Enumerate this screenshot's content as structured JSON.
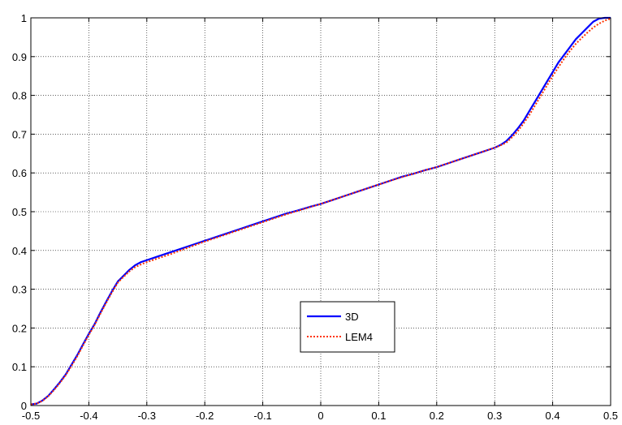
{
  "chart_data": {
    "type": "line",
    "title": "",
    "xlabel": "",
    "ylabel": "",
    "xlim": [
      -0.5,
      0.5
    ],
    "ylim": [
      0,
      1
    ],
    "grid": true,
    "grid_style": "dotted",
    "legend_position": "center-right",
    "x_ticks": [
      "-0.5",
      "-0.4",
      "-0.3",
      "-0.2",
      "-0.1",
      "0",
      "0.1",
      "0.2",
      "0.3",
      "0.4",
      "0.5"
    ],
    "y_ticks": [
      "0",
      "0.1",
      "0.2",
      "0.3",
      "0.4",
      "0.5",
      "0.6",
      "0.7",
      "0.8",
      "0.9",
      "1"
    ],
    "series": [
      {
        "name": "3D",
        "color": "#0000ff",
        "line_style": "solid",
        "x": [
          -0.5,
          -0.49,
          -0.48,
          -0.47,
          -0.46,
          -0.45,
          -0.44,
          -0.43,
          -0.42,
          -0.41,
          -0.4,
          -0.39,
          -0.38,
          -0.37,
          -0.36,
          -0.35,
          -0.34,
          -0.33,
          -0.32,
          -0.31,
          -0.3,
          -0.28,
          -0.26,
          -0.24,
          -0.22,
          -0.2,
          -0.18,
          -0.16,
          -0.14,
          -0.12,
          -0.1,
          -0.08,
          -0.06,
          -0.04,
          -0.02,
          0,
          0.02,
          0.04,
          0.06,
          0.08,
          0.1,
          0.12,
          0.14,
          0.16,
          0.18,
          0.2,
          0.22,
          0.24,
          0.26,
          0.28,
          0.3,
          0.31,
          0.32,
          0.33,
          0.34,
          0.35,
          0.36,
          0.37,
          0.38,
          0.39,
          0.4,
          0.41,
          0.42,
          0.43,
          0.44,
          0.45,
          0.46,
          0.47,
          0.48,
          0.49,
          0.5
        ],
        "y": [
          0.003,
          0.005,
          0.013,
          0.025,
          0.042,
          0.06,
          0.08,
          0.105,
          0.13,
          0.158,
          0.185,
          0.21,
          0.24,
          0.268,
          0.295,
          0.32,
          0.335,
          0.35,
          0.362,
          0.37,
          0.375,
          0.385,
          0.395,
          0.405,
          0.415,
          0.425,
          0.435,
          0.445,
          0.455,
          0.465,
          0.475,
          0.485,
          0.495,
          0.503,
          0.512,
          0.52,
          0.53,
          0.54,
          0.55,
          0.56,
          0.57,
          0.58,
          0.59,
          0.598,
          0.607,
          0.615,
          0.625,
          0.635,
          0.645,
          0.655,
          0.665,
          0.672,
          0.682,
          0.697,
          0.715,
          0.735,
          0.76,
          0.785,
          0.81,
          0.835,
          0.86,
          0.885,
          0.905,
          0.925,
          0.945,
          0.96,
          0.975,
          0.99,
          0.998,
          1.0,
          1.0
        ]
      },
      {
        "name": "LEM4",
        "color": "#ff3300",
        "line_style": "dotted",
        "x": [
          -0.5,
          -0.49,
          -0.48,
          -0.47,
          -0.46,
          -0.45,
          -0.44,
          -0.43,
          -0.42,
          -0.41,
          -0.4,
          -0.39,
          -0.38,
          -0.37,
          -0.36,
          -0.35,
          -0.34,
          -0.33,
          -0.32,
          -0.31,
          -0.3,
          -0.28,
          -0.26,
          -0.24,
          -0.22,
          -0.2,
          -0.18,
          -0.16,
          -0.14,
          -0.12,
          -0.1,
          -0.08,
          -0.06,
          -0.04,
          -0.02,
          0,
          0.02,
          0.04,
          0.06,
          0.08,
          0.1,
          0.12,
          0.14,
          0.16,
          0.18,
          0.2,
          0.22,
          0.24,
          0.26,
          0.28,
          0.3,
          0.31,
          0.32,
          0.33,
          0.34,
          0.35,
          0.36,
          0.37,
          0.38,
          0.39,
          0.4,
          0.41,
          0.42,
          0.43,
          0.44,
          0.45,
          0.46,
          0.47,
          0.48,
          0.49,
          0.5
        ],
        "y": [
          0.003,
          0.005,
          0.012,
          0.024,
          0.04,
          0.058,
          0.078,
          0.102,
          0.127,
          0.155,
          0.182,
          0.208,
          0.237,
          0.265,
          0.292,
          0.317,
          0.332,
          0.346,
          0.357,
          0.364,
          0.37,
          0.38,
          0.39,
          0.401,
          0.412,
          0.423,
          0.433,
          0.443,
          0.453,
          0.463,
          0.473,
          0.483,
          0.493,
          0.502,
          0.511,
          0.52,
          0.53,
          0.54,
          0.55,
          0.56,
          0.57,
          0.58,
          0.589,
          0.598,
          0.607,
          0.615,
          0.625,
          0.635,
          0.645,
          0.655,
          0.665,
          0.671,
          0.678,
          0.692,
          0.708,
          0.728,
          0.75,
          0.775,
          0.8,
          0.825,
          0.85,
          0.873,
          0.895,
          0.915,
          0.933,
          0.948,
          0.962,
          0.975,
          0.985,
          0.993,
          0.998
        ]
      }
    ]
  }
}
